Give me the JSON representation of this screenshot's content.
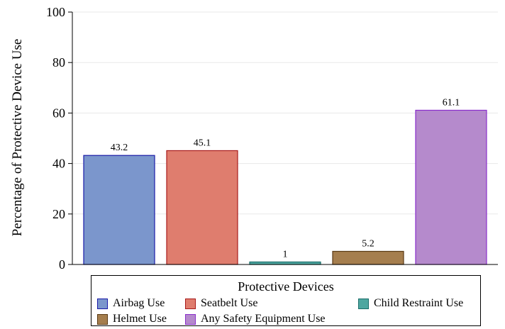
{
  "chart_data": {
    "type": "bar",
    "title": "",
    "xlabel": "",
    "ylabel": "Percentage of Protective Device Use",
    "ylim": [
      0,
      100
    ],
    "yticks": [
      0,
      20,
      40,
      60,
      80,
      100
    ],
    "grid": true,
    "legend_position": "bottom",
    "legend_title": "Protective Devices",
    "categories": [
      "Airbag Use",
      "Seatbelt Use",
      "Child Restraint Use",
      "Helmet Use",
      "Any Safety Equipment Use"
    ],
    "values": [
      43.2,
      45.1,
      1,
      5.2,
      61.1
    ],
    "data_labels": [
      "43.2",
      "45.1",
      "1",
      "5.2",
      "61.1"
    ],
    "colors": [
      "#7b96cc",
      "#df7d6e",
      "#4ea7a0",
      "#a57e4e",
      "#b58acc"
    ],
    "edge_colors": [
      "#1a1aa8",
      "#a81a1a",
      "#1a6e6a",
      "#5a3a14",
      "#8a2ecc"
    ]
  }
}
